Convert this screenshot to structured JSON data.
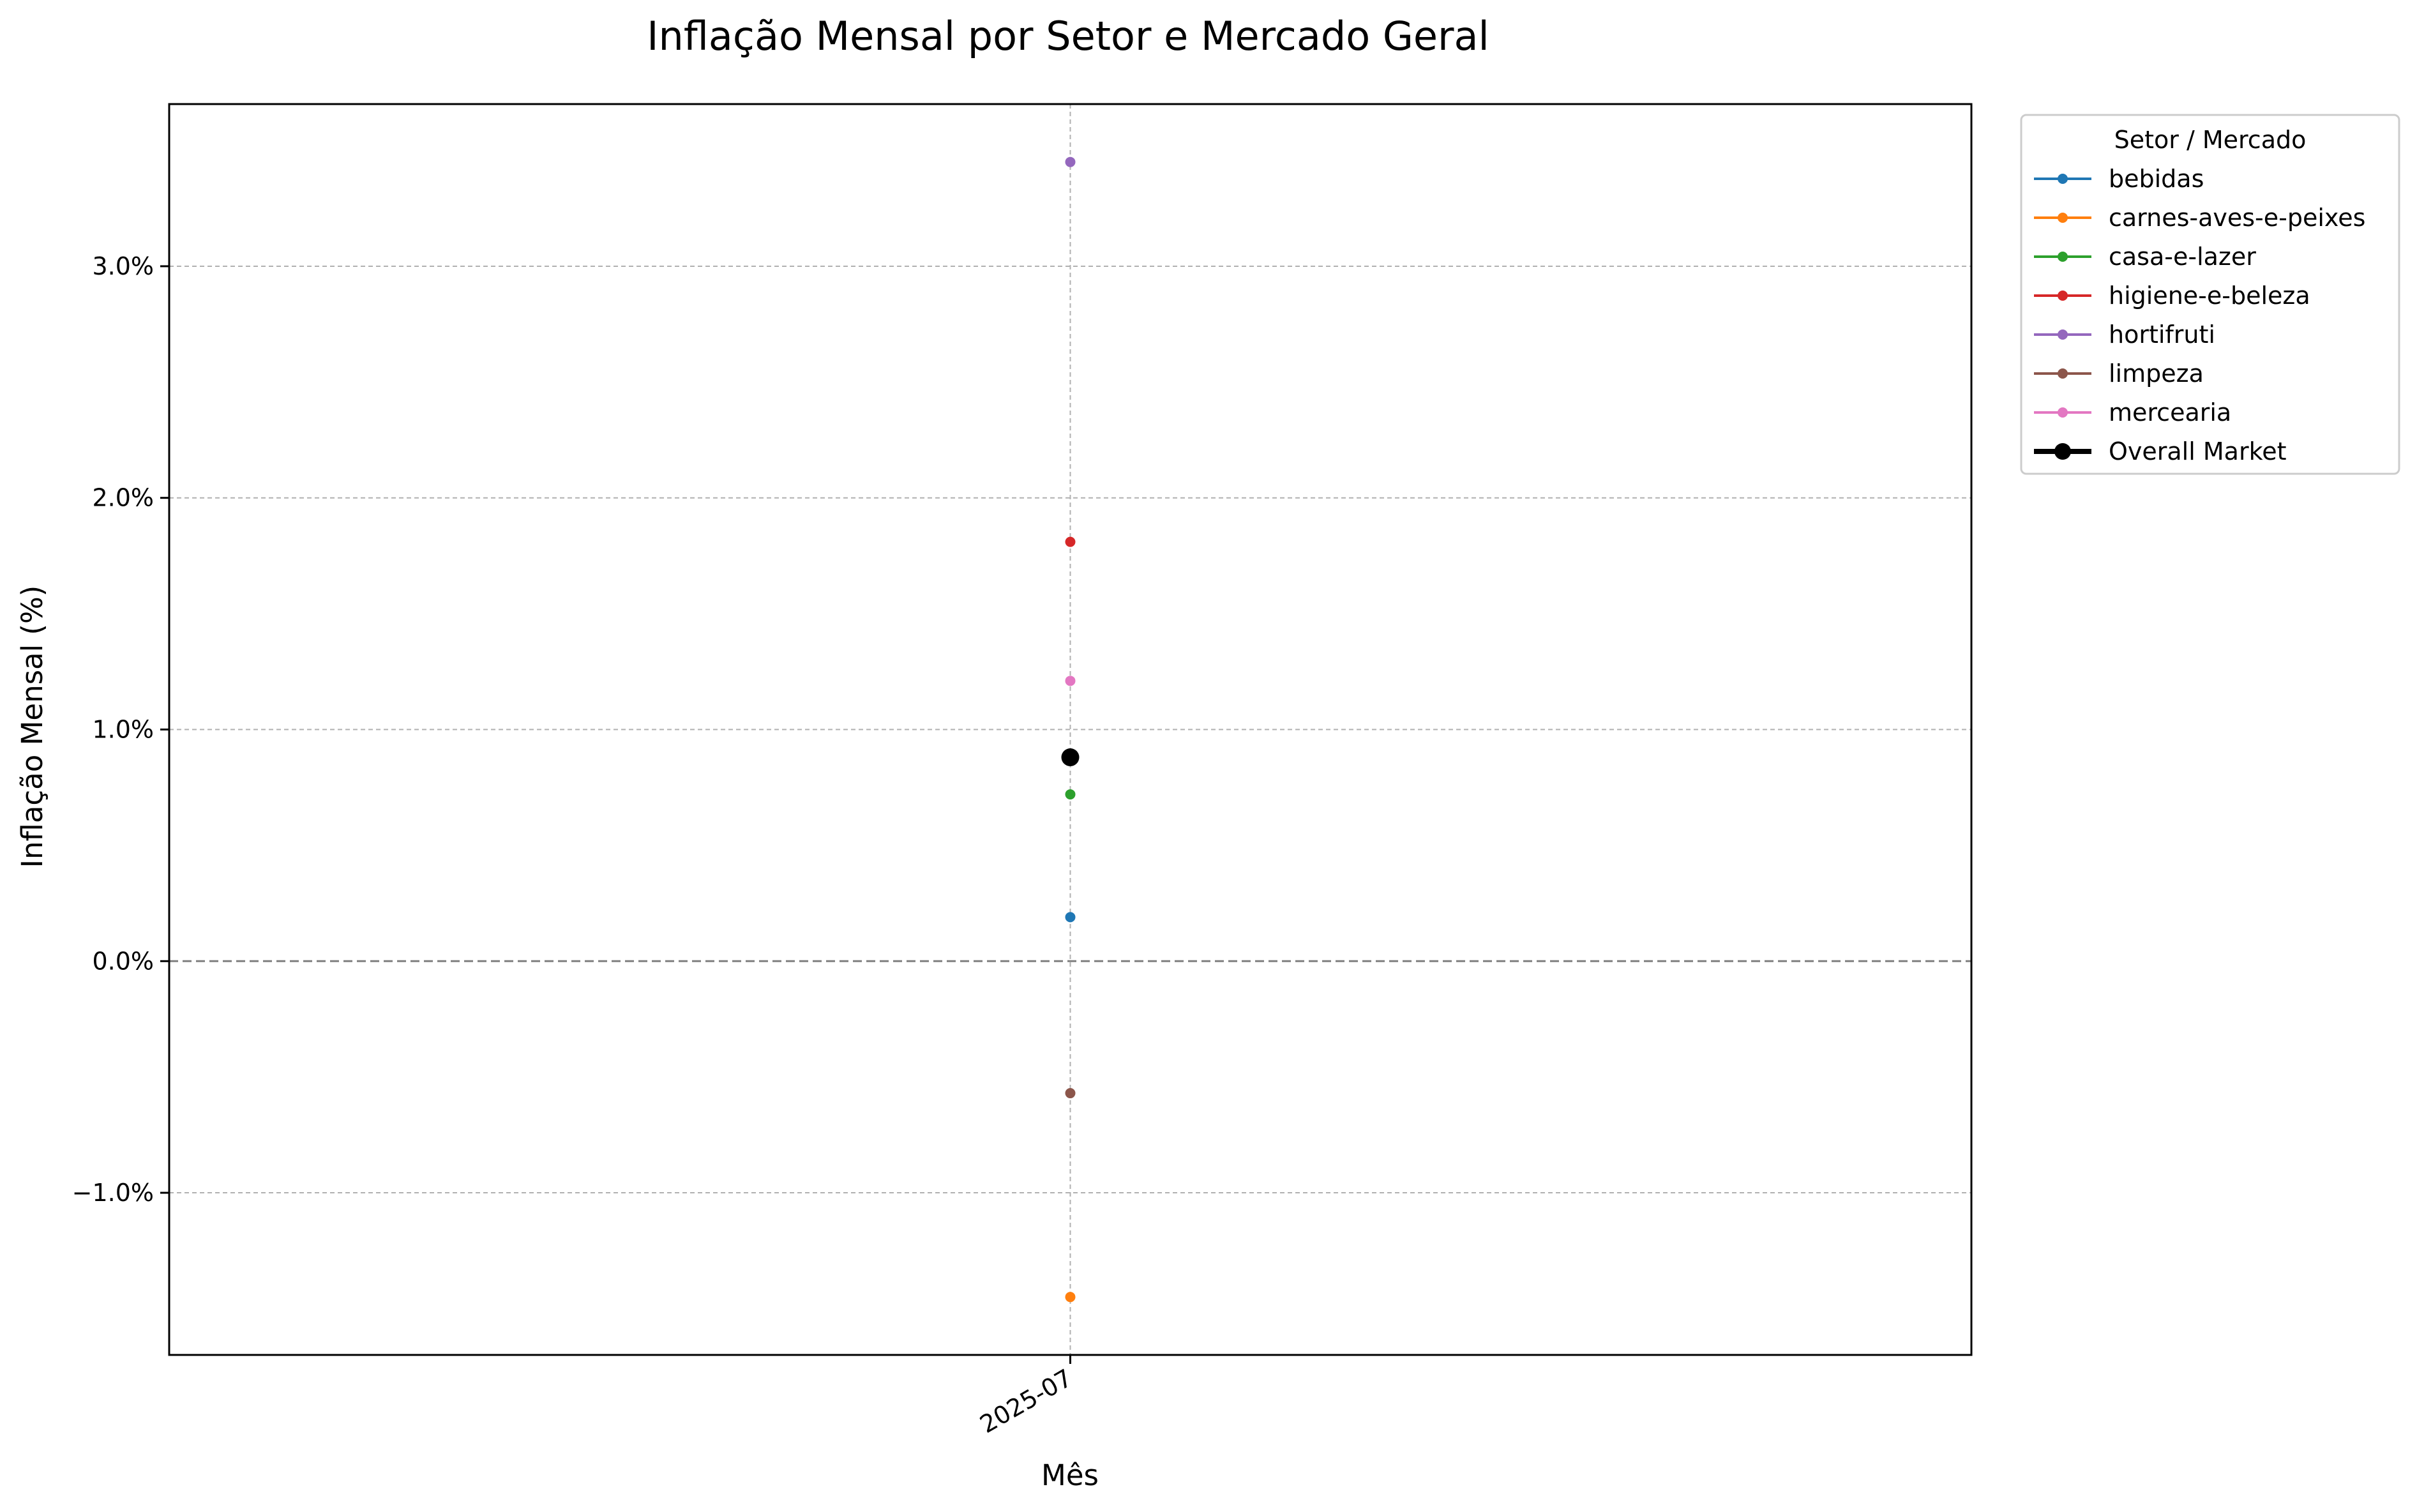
{
  "chart_data": {
    "type": "line",
    "title": "Inflação Mensal por Setor e Mercado Geral",
    "xlabel": "Mês",
    "ylabel": "Inflação Mensal (%)",
    "categories": [
      "2025-07"
    ],
    "ylim": [
      -1.7,
      3.7
    ],
    "yticks": [
      -1.0,
      0.0,
      1.0,
      2.0,
      3.0
    ],
    "ytick_labels": [
      "−1.0%",
      "0.0%",
      "1.0%",
      "2.0%",
      "3.0%"
    ],
    "grid": true,
    "zero_line": true,
    "legend": {
      "title": "Setor / Mercado",
      "placement": "outside-top-right"
    },
    "series": [
      {
        "name": "bebidas",
        "color": "#1f77b4",
        "values": [
          0.19
        ]
      },
      {
        "name": "carnes-aves-e-peixes",
        "color": "#ff7f0e",
        "values": [
          -1.45
        ]
      },
      {
        "name": "casa-e-lazer",
        "color": "#2ca02c",
        "values": [
          0.72
        ]
      },
      {
        "name": "higiene-e-beleza",
        "color": "#d62728",
        "values": [
          1.81
        ]
      },
      {
        "name": "hortifruti",
        "color": "#9467bd",
        "values": [
          3.45
        ]
      },
      {
        "name": "limpeza",
        "color": "#8c564b",
        "values": [
          -0.57
        ]
      },
      {
        "name": "mercearia",
        "color": "#e377c2",
        "values": [
          1.21
        ]
      },
      {
        "name": "Overall Market",
        "color": "#000000",
        "values": [
          0.88
        ],
        "emphasis": true
      }
    ]
  }
}
